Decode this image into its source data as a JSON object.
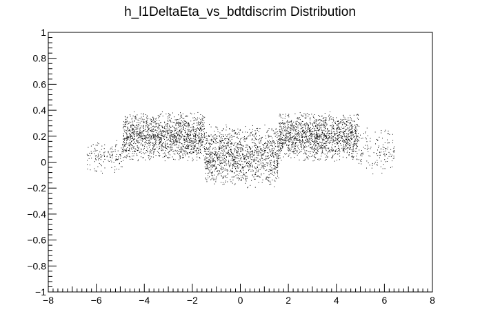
{
  "chart_data": {
    "type": "scatter",
    "title": "h_l1DeltaEta_vs_bdtdiscrim Distribution",
    "xlabel": "",
    "ylabel": "",
    "xlim": [
      -8,
      8
    ],
    "ylim": [
      -1,
      1
    ],
    "x_ticks": [
      -8,
      -6,
      -4,
      -2,
      0,
      2,
      4,
      6,
      8
    ],
    "y_ticks": [
      -1,
      -0.8,
      -0.6,
      -0.4,
      -0.2,
      0,
      0.2,
      0.4,
      0.6,
      0.8,
      1
    ],
    "x_tick_labels": [
      "−8",
      "−6",
      "−4",
      "−2",
      "0",
      "2",
      "4",
      "6",
      "8"
    ],
    "y_tick_labels": [
      "−1",
      "−0.8",
      "−0.6",
      "−0.4",
      "−0.2",
      "0",
      "0.2",
      "0.4",
      "0.6",
      "0.8",
      "1"
    ],
    "grid": false,
    "legend": "none",
    "marker_color": "#000000",
    "density_regions": [
      {
        "x_range": [
          -6.4,
          -4.9
        ],
        "y_range": [
          -0.1,
          0.2
        ],
        "count": 140
      },
      {
        "x_range": [
          -4.9,
          -1.5
        ],
        "y_range": [
          0.0,
          0.4
        ],
        "count": 1500
      },
      {
        "x_range": [
          -1.5,
          1.6
        ],
        "y_range": [
          -0.2,
          0.3
        ],
        "count": 1300
      },
      {
        "x_range": [
          1.6,
          4.9
        ],
        "y_range": [
          0.0,
          0.4
        ],
        "count": 1500
      },
      {
        "x_range": [
          4.9,
          6.4
        ],
        "y_range": [
          -0.1,
          0.3
        ],
        "count": 140
      }
    ]
  }
}
